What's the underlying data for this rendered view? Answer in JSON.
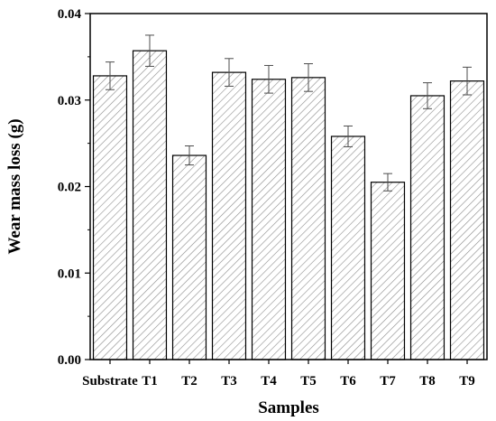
{
  "chart_data": {
    "type": "bar",
    "xlabel": "Samples",
    "ylabel": "Wear mass loss (g)",
    "categories": [
      "Substrate",
      "T1",
      "T2",
      "T3",
      "T4",
      "T5",
      "T6",
      "T7",
      "T8",
      "T9"
    ],
    "values": [
      0.0328,
      0.0357,
      0.0236,
      0.0332,
      0.0324,
      0.0326,
      0.0258,
      0.0205,
      0.0305,
      0.0322
    ],
    "errors": [
      0.0016,
      0.0018,
      0.0011,
      0.0016,
      0.0016,
      0.0016,
      0.0012,
      0.001,
      0.0015,
      0.0016
    ],
    "ylim": [
      0,
      0.04
    ],
    "yticks": [
      "0.00",
      "0.01",
      "0.02",
      "0.03",
      "0.04"
    ],
    "grid": false,
    "bar_fill": "diagonal hatch",
    "colors": {
      "bar_edge": "#000000",
      "hatch": "#8c8c8c",
      "axis": "#000000",
      "error_bar": "#4d4d4d"
    }
  }
}
